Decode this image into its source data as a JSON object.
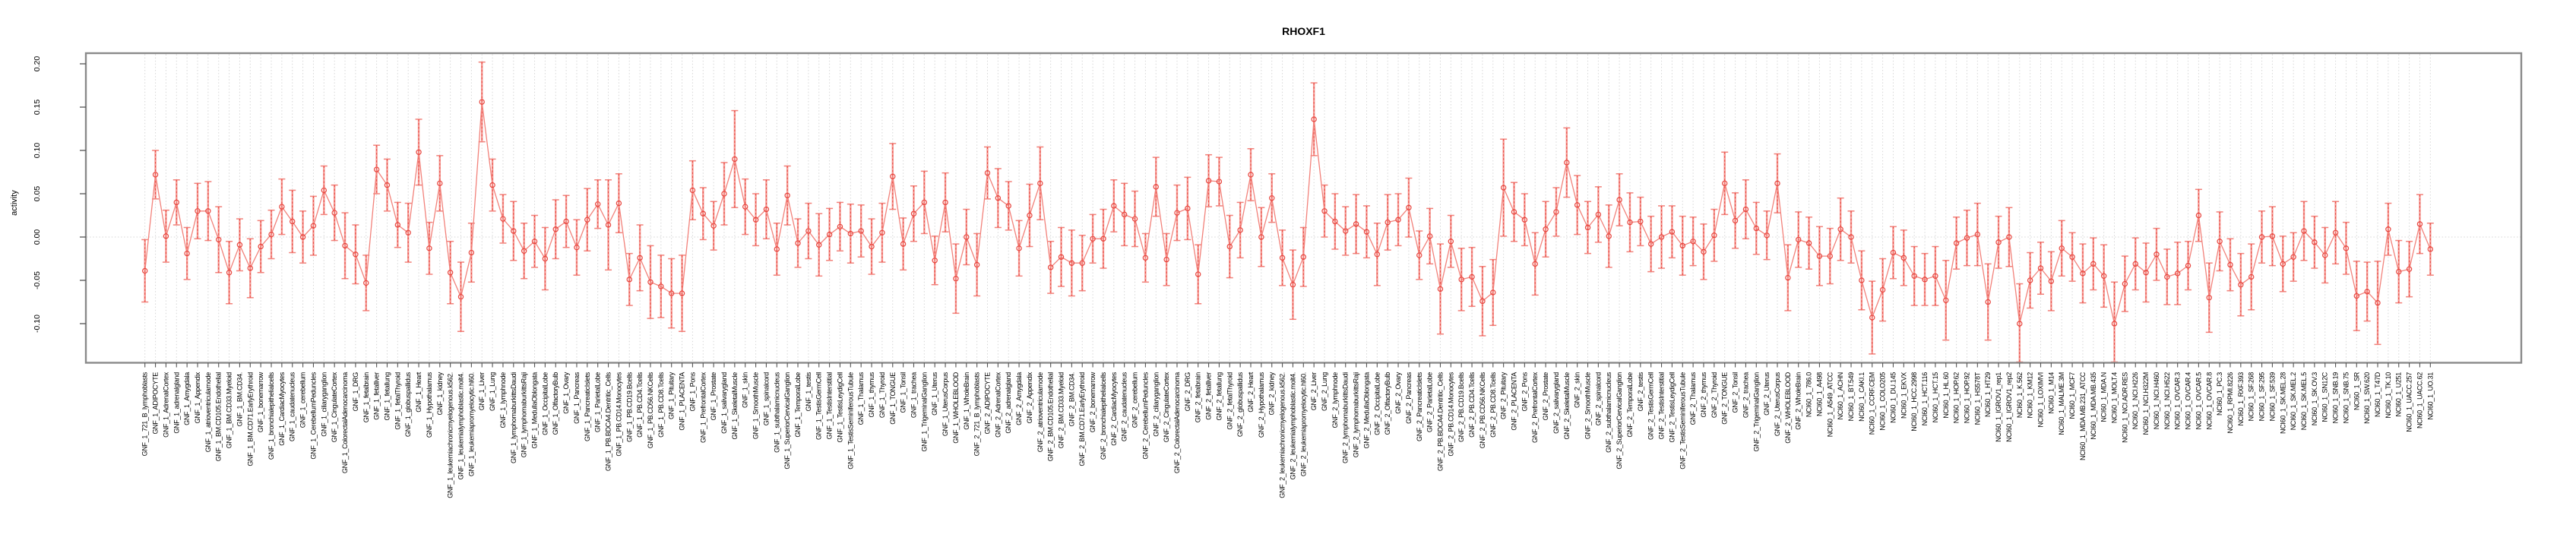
{
  "chart_data": {
    "type": "line",
    "title": "RHOXF1",
    "ylabel": "activity",
    "xlabel": "",
    "ylim": [
      -0.146,
      0.211
    ],
    "yticks": [
      0.2,
      0.15,
      0.1,
      0.05,
      0.0,
      -0.05,
      -0.1
    ],
    "grid": "dotted vertical line at every sample, dotted horizontal line at y=0",
    "legend": "none",
    "marker": "open circle with error bar (caps), consecutive points connected",
    "colors": {
      "point": "#e8453e",
      "errorbar_light": "#f59a94",
      "line": "#f2827b",
      "grid": "#d6d6d6",
      "box": "#8a8a8a",
      "tick": "#555555",
      "text": "#000000",
      "background": "#ffffff"
    },
    "categories": [
      "GNF_1_721_B_lymphoblasts",
      "GNF_1_ADIPOCYTE",
      "GNF_1_AdrenalCortex",
      "GNF_1_adrenalgland",
      "GNF_1_Amygdala",
      "GNF_1_Appendix",
      "GNF_1_atrioventricularnode",
      "GNF_1_BM.CD105.Endothelial",
      "GNF_1_BM.CD33.Myeloid",
      "GNF_1_BM.CD34.",
      "GNF_1_BM.CD71.EarlyErythroid",
      "GNF_1_bonemarrow",
      "GNF_1_bronchialepithelialcells",
      "GNF_1_CardiacMyocytes",
      "GNF_1_caudatenucleus",
      "GNF_1_cerebellum",
      "GNF_1_CerebellumPeduncles",
      "GNF_1_ciliaryganglion",
      "GNF_1_CingulateCortex",
      "GNF_1_ColorectalAdenocarcinoma",
      "GNF_1_DRG",
      "GNF_1_fetalbrain",
      "GNF_1_fetalliver",
      "GNF_1_fetallung",
      "GNF_1_fetalThyroid",
      "GNF_1_globuspallidus",
      "GNF_1_Heart",
      "GNF_1_Hypothalamus",
      "GNF_1_kidney",
      "GNF_1_leukemiachronicmyelogenous.k562.",
      "GNF_1_leukemialymphoblastic.molt4.",
      "GNF_1_leukemiapromyelocytic.hl60.",
      "GNF_1_Liver",
      "GNF_1_Lung",
      "GNF_1_lymphnode",
      "GNF_1_lymphomaburkittsDaudi",
      "GNF_1_lymphomaburkittsRaji",
      "GNF_1_MedullaOblongata",
      "GNF_1_OccipitalLobe",
      "GNF_1_OlfactoryBulb",
      "GNF_1_Ovary",
      "GNF_1_Pancreas",
      "GNF_1_PancreaticIslets",
      "GNF_1_ParietalLobe",
      "GNF_1_PB.BDCA4.Dentritic_Cells",
      "GNF_1_PB.CD14.Monocytes",
      "GNF_1_PB.CD19.Bcells",
      "GNF_1_PB.CD4.Tcells",
      "GNF_1_PB.CD56.NKCells",
      "GNF_1_PB.CD8.Tcells",
      "GNF_1_Pituitary",
      "GNF_1_PLACENTA",
      "GNF_1_Pons",
      "GNF_1_PrefrontalCortex",
      "GNF_1_Prostate",
      "GNF_1_salivarygland",
      "GNF_1_SkeletalMuscle",
      "GNF_1_skin",
      "GNF_1_SmoothMuscle",
      "GNF_1_spinalcord",
      "GNF_1_subthalamicnucleus",
      "GNF_1_SuperiorCervicalGanglion",
      "GNF_1_TemporalLobe",
      "GNF_1_testis",
      "GNF_1_TestisGermCell",
      "GNF_1_TestisInterstitial",
      "GNF_1_TestisLeydigCell",
      "GNF_1_TestisSeminiferousTubule",
      "GNF_1_Thalamus",
      "GNF_1_thymus",
      "GNF_1_Thyroid",
      "GNF_1_TONGUE",
      "GNF_1_Tonsil",
      "GNF_1_trachea",
      "GNF_1_TrigeminalGanglion",
      "GNF_1_Uterus",
      "GNF_1_UterusCorpus",
      "GNF_1_WHOLEBLOOD",
      "GNF_1_WholeBrain",
      "GNF_2_721_B_lymphoblasts",
      "GNF_2_ADIPOCYTE",
      "GNF_2_AdrenalCortex",
      "GNF_2_adrenalgland",
      "GNF_2_Amygdala",
      "GNF_2_Appendix",
      "GNF_2_atrioventricularnode",
      "GNF_2_BM.CD105.Endothelial",
      "GNF_2_BM.CD33.Myeloid",
      "GNF_2_BM.CD34.",
      "GNF_2_BM.CD71.EarlyErythroid",
      "GNF_2_bonemarrow",
      "GNF_2_bronchialepithelialcells",
      "GNF_2_CardiacMyocytes",
      "GNF_2_caudatenucleus",
      "GNF_2_cerebellum",
      "GNF_2_CerebellumPeduncles",
      "GNF_2_ciliaryganglion",
      "GNF_2_CingulateCortex",
      "GNF_2_ColorectalAdenocarcinoma",
      "GNF_2_DRG",
      "GNF_2_fetalbrain",
      "GNF_2_fetalliver",
      "GNF_2_fetallung",
      "GNF_2_fetalThyroid",
      "GNF_2_globuspallidus",
      "GNF_2_Heart",
      "GNF_2_Hypothalamus",
      "GNF_2_kidney",
      "GNF_2_leukemiachronicmyelogenous.k562.",
      "GNF_2_leukemialymphoblastic.molt4.",
      "GNF_2_leukemiapromyelocytic.hl60.",
      "GNF_2_Liver",
      "GNF_2_Lung",
      "GNF_2_lymphnode",
      "GNF_2_lymphomaburkittsDaudi",
      "GNF_2_lymphomaburkittsRaji",
      "GNF_2_MedullaOblongata",
      "GNF_2_OccipitalLobe",
      "GNF_2_OlfactoryBulb",
      "GNF_2_Ovary",
      "GNF_2_Pancreas",
      "GNF_2_PancreaticIslets",
      "GNF_2_ParietalLobe",
      "GNF_2_PB.BDCA4.Dentritic_Cells",
      "GNF_2_PB.CD14.Monocytes",
      "GNF_2_PB.CD19.Bcells",
      "GNF_2_PB.CD4.Tcells",
      "GNF_2_PB.CD56.NKCells",
      "GNF_2_PB.CD8.Tcells",
      "GNF_2_Pituitary",
      "GNF_2_PLACENTA",
      "GNF_2_Pons",
      "GNF_2_PrefrontalCortex",
      "GNF_2_Prostate",
      "GNF_2_salivarygland",
      "GNF_2_SkeletalMuscle",
      "GNF_2_skin",
      "GNF_2_SmoothMuscle",
      "GNF_2_spinalcord",
      "GNF_2_subthalamicnucleus",
      "GNF_2_SuperiorCervicalGanglion",
      "GNF_2_TemporalLobe",
      "GNF_2_testis",
      "GNF_2_TestisGermCell",
      "GNF_2_TestisInterstitial",
      "GNF_2_TestisLeydigCell",
      "GNF_2_TestisSeminiferousTubule",
      "GNF_2_Thalamus",
      "GNF_2_thymus",
      "GNF_2_Thyroid",
      "GNF_2_TONGUE",
      "GNF_2_Tonsil",
      "GNF_2_trachea",
      "GNF_2_TrigeminalGanglion",
      "GNF_2_Uterus",
      "GNF_2_UterusCorpus",
      "GNF_2_WHOLEBLOOD",
      "GNF_2_WholeBrain",
      "NCI60_1_786.0",
      "NCI60_1_A498",
      "NCI60_1_A549_ATCC",
      "NCI60_1_ACHN",
      "NCI60_1_BT.549",
      "NCI60_1_CAKI.1",
      "NCI60_1_CCRF.CEM",
      "NCI60_1_COLO205",
      "NCI60_1_DU.145",
      "NCI60_1_EKVX",
      "NCI60_1_HCC.2998",
      "NCI60_1_HCT.116",
      "NCI60_1_HCT.15",
      "NCI60_1_HL.60",
      "NCI60_1_HOP.62",
      "NCI60_1_HOP.92",
      "NCI60_1_HS578T",
      "NCI60_1_HT29",
      "NCI60_1_IGROV1_rep1",
      "NCI60_1_IGROV1_rep2",
      "NCI60_1_K.562",
      "NCI60_1_KM12",
      "NCI60_1_LOXIMVI",
      "NCI60_1_M14",
      "NCI60_1_MALME.3M",
      "NCI60_1_MCF7",
      "NCI60_1_MDA.MB.231_ATCC",
      "NCI60_1_MDA.MB.435",
      "NCI60_1_MDA.N",
      "NCI60_1_MOLT.4",
      "NCI60_1_NCI.ADR.RES",
      "NCI60_1_NCI.H226",
      "NCI60_1_NCI.H322M",
      "NCI60_1_NCI.H460",
      "NCI60_1_NCI.H522",
      "NCI60_1_OVCAR.3",
      "NCI60_1_OVCAR.4",
      "NCI60_1_OVCAR.5",
      "NCI60_1_OVCAR.8",
      "NCI60_1_PC.3",
      "NCI60_1_RPMI.8226",
      "NCI60_1_RXF.393",
      "NCI60_1_SF.268",
      "NCI60_1_SF.295",
      "NCI60_1_SF.539",
      "NCI60_1_SK.MEL.28",
      "NCI60_1_SK.MEL.2",
      "NCI60_1_SK.MEL.5",
      "NCI60_1_SK.OV.3",
      "NCI60_1_SN12C",
      "NCI60_1_SNB.19",
      "NCI60_1_SNB.75",
      "NCI60_1_SR",
      "NCI60_1_SW.620",
      "NCI60_1_T47D",
      "NCI60_1_TK.10",
      "NCI60_1_U251",
      "NCI60_1_UACC.257",
      "NCI60_1_UACC.62",
      "NCI60_1_UO.31"
    ],
    "values": [
      -0.039,
      0.072,
      0.001,
      0.04,
      -0.019,
      0.03,
      0.03,
      -0.003,
      -0.041,
      -0.009,
      -0.036,
      -0.011,
      0.003,
      0.035,
      0.018,
      0.0,
      0.013,
      0.054,
      0.028,
      -0.01,
      -0.02,
      -0.053,
      0.078,
      0.06,
      0.014,
      0.005,
      0.098,
      -0.013,
      0.062,
      -0.041,
      -0.069,
      -0.018,
      0.156,
      0.06,
      0.021,
      0.007,
      -0.016,
      -0.005,
      -0.025,
      0.009,
      0.018,
      -0.012,
      0.02,
      0.038,
      0.014,
      0.039,
      -0.049,
      -0.024,
      -0.052,
      -0.057,
      -0.065,
      -0.065,
      0.054,
      0.027,
      0.013,
      0.05,
      0.09,
      0.035,
      0.02,
      0.032,
      -0.014,
      0.048,
      -0.007,
      0.007,
      -0.009,
      0.003,
      0.012,
      0.004,
      0.007,
      -0.011,
      0.005,
      0.07,
      -0.008,
      0.027,
      0.04,
      -0.027,
      0.04,
      -0.048,
      0.0,
      -0.032,
      0.074,
      0.045,
      0.036,
      -0.013,
      0.025,
      0.062,
      -0.035,
      -0.023,
      -0.03,
      -0.03,
      -0.002,
      -0.002,
      0.036,
      0.026,
      0.021,
      -0.024,
      0.058,
      -0.026,
      0.028,
      0.033,
      -0.043,
      0.065,
      0.064,
      -0.011,
      0.008,
      0.072,
      0.0,
      0.045,
      -0.024,
      -0.055,
      -0.023,
      0.136,
      0.03,
      0.018,
      0.007,
      0.015,
      0.006,
      -0.02,
      0.017,
      0.02,
      0.034,
      -0.021,
      0.001,
      -0.06,
      -0.005,
      -0.049,
      -0.046,
      -0.074,
      -0.064,
      0.057,
      0.029,
      0.02,
      -0.031,
      0.009,
      0.029,
      0.086,
      0.037,
      0.011,
      0.026,
      0.001,
      0.043,
      0.017,
      0.018,
      -0.008,
      0.0,
      0.006,
      -0.01,
      -0.005,
      -0.017,
      0.002,
      0.062,
      0.019,
      0.032,
      0.01,
      0.002,
      0.062,
      -0.047,
      -0.003,
      -0.007,
      -0.022,
      -0.022,
      0.009,
      0.0,
      -0.05,
      -0.093,
      -0.061,
      -0.018,
      -0.024,
      -0.045,
      -0.049,
      -0.045,
      -0.073,
      -0.007,
      -0.001,
      0.003,
      -0.075,
      -0.006,
      0.0,
      -0.1,
      -0.05,
      -0.036,
      -0.051,
      -0.013,
      -0.023,
      -0.042,
      -0.031,
      -0.045,
      -0.1,
      -0.054,
      -0.031,
      -0.041,
      -0.02,
      -0.046,
      -0.042,
      -0.033,
      0.025,
      -0.07,
      -0.005,
      -0.032,
      -0.055,
      -0.046,
      0.0,
      0.001,
      -0.031,
      -0.023,
      0.007,
      -0.006,
      -0.021,
      0.005,
      -0.013,
      -0.068,
      -0.063,
      -0.076,
      0.009,
      -0.04,
      -0.037,
      0.015,
      -0.014
    ],
    "errors": [
      0.036,
      0.028,
      0.03,
      0.026,
      0.03,
      0.032,
      0.034,
      0.038,
      0.036,
      0.03,
      0.034,
      0.03,
      0.028,
      0.032,
      0.036,
      0.03,
      0.034,
      0.028,
      0.032,
      0.038,
      0.034,
      0.032,
      0.028,
      0.03,
      0.026,
      0.034,
      0.038,
      0.03,
      0.032,
      0.036,
      0.04,
      0.034,
      0.046,
      0.03,
      0.028,
      0.034,
      0.032,
      0.03,
      0.036,
      0.034,
      0.03,
      0.032,
      0.036,
      0.028,
      0.052,
      0.034,
      0.03,
      0.038,
      0.042,
      0.036,
      0.04,
      0.044,
      0.034,
      0.03,
      0.028,
      0.036,
      0.056,
      0.032,
      0.03,
      0.034,
      0.03,
      0.034,
      0.028,
      0.032,
      0.036,
      0.03,
      0.028,
      0.034,
      0.03,
      0.032,
      0.034,
      0.038,
      0.03,
      0.032,
      0.036,
      0.028,
      0.034,
      0.04,
      0.032,
      0.036,
      0.03,
      0.034,
      0.028,
      0.032,
      0.036,
      0.042,
      0.03,
      0.034,
      0.038,
      0.032,
      0.028,
      0.034,
      0.03,
      0.036,
      0.032,
      0.028,
      0.034,
      0.03,
      0.032,
      0.036,
      0.034,
      0.03,
      0.028,
      0.036,
      0.032,
      0.03,
      0.034,
      0.028,
      0.032,
      0.04,
      0.034,
      0.042,
      0.03,
      0.032,
      0.028,
      0.034,
      0.03,
      0.036,
      0.032,
      0.03,
      0.034,
      0.028,
      0.032,
      0.052,
      0.03,
      0.036,
      0.034,
      0.04,
      0.038,
      0.056,
      0.034,
      0.03,
      0.036,
      0.032,
      0.028,
      0.04,
      0.034,
      0.03,
      0.032,
      0.036,
      0.03,
      0.034,
      0.028,
      0.032,
      0.036,
      0.03,
      0.034,
      0.028,
      0.032,
      0.03,
      0.036,
      0.032,
      0.034,
      0.03,
      0.028,
      0.034,
      0.038,
      0.032,
      0.03,
      0.034,
      0.032,
      0.036,
      0.03,
      0.034,
      0.042,
      0.036,
      0.03,
      0.032,
      0.034,
      0.03,
      0.034,
      0.046,
      0.03,
      0.032,
      0.036,
      0.044,
      0.03,
      0.034,
      0.046,
      0.032,
      0.03,
      0.034,
      0.032,
      0.028,
      0.034,
      0.03,
      0.036,
      0.048,
      0.032,
      0.03,
      0.034,
      0.03,
      0.032,
      0.036,
      0.028,
      0.03,
      0.04,
      0.034,
      0.03,
      0.036,
      0.038,
      0.03,
      0.034,
      0.032,
      0.028,
      0.034,
      0.03,
      0.032,
      0.036,
      0.03,
      0.04,
      0.034,
      0.048,
      0.03,
      0.036,
      0.032,
      0.034,
      0.03
    ]
  }
}
